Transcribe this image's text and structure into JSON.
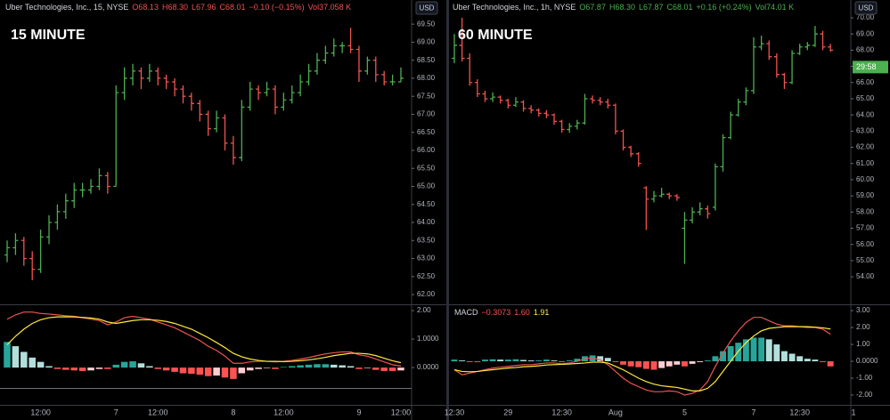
{
  "chart_data": [
    {
      "type": "ohlc",
      "title": "Uber Technologies, Inc., 15, NYSE",
      "legend_values": [
        "O68.13",
        "H68.30",
        "L67.96",
        "C68.01",
        "−0.10 (−0.15%)",
        "Vol37.058 K"
      ],
      "legend_color": "#ef5350",
      "annotation": "15 MINUTE",
      "currency": "USD",
      "up_color": "#4caf50",
      "down_color": "#ef5350",
      "ylim": [
        61.73,
        70.17
      ],
      "yticks": [
        {
          "value": 62,
          "label": "62.00"
        },
        {
          "value": 62.5,
          "label": "62.50"
        },
        {
          "value": 63,
          "label": "63.00"
        },
        {
          "value": 63.5,
          "label": "63.50"
        },
        {
          "value": 64,
          "label": "64.00"
        },
        {
          "value": 64.5,
          "label": "64.50"
        },
        {
          "value": 65,
          "label": "65.00"
        },
        {
          "value": 65.5,
          "label": "65.50"
        },
        {
          "value": 66,
          "label": "66.00"
        },
        {
          "value": 66.5,
          "label": "66.50"
        },
        {
          "value": 67,
          "label": "67.00"
        },
        {
          "value": 67.5,
          "label": "67.50"
        },
        {
          "value": 68,
          "label": "68.00"
        },
        {
          "value": 68.5,
          "label": "68.50"
        },
        {
          "value": 69,
          "label": "69.00"
        },
        {
          "value": 69.5,
          "label": "69.50"
        }
      ],
      "ohlc": [
        [
          63.1,
          63.5,
          62.9,
          63.3
        ],
        [
          63.3,
          63.7,
          63.1,
          63.5
        ],
        [
          63.5,
          63.6,
          62.8,
          63.0
        ],
        [
          63.0,
          63.2,
          62.4,
          62.7
        ],
        [
          62.7,
          63.8,
          62.6,
          63.6
        ],
        [
          63.6,
          64.2,
          63.4,
          64.0
        ],
        [
          64.0,
          64.5,
          63.8,
          64.3
        ],
        [
          64.3,
          64.8,
          64.1,
          64.6
        ],
        [
          64.6,
          65.1,
          64.4,
          64.9
        ],
        [
          64.9,
          65.1,
          64.7,
          64.9
        ],
        [
          64.9,
          65.2,
          64.8,
          65.0
        ],
        [
          65.0,
          65.5,
          64.9,
          65.3
        ],
        [
          65.3,
          65.4,
          64.8,
          65.0
        ],
        [
          65.0,
          67.8,
          65.0,
          67.6
        ],
        [
          67.6,
          68.3,
          67.4,
          68.0
        ],
        [
          68.0,
          68.4,
          67.8,
          68.2
        ],
        [
          68.2,
          68.3,
          67.7,
          68.0
        ],
        [
          68.0,
          68.4,
          67.9,
          68.2
        ],
        [
          68.2,
          68.3,
          67.8,
          68.0
        ],
        [
          68.0,
          68.1,
          67.7,
          67.9
        ],
        [
          67.9,
          68.0,
          67.5,
          67.7
        ],
        [
          67.7,
          67.8,
          67.3,
          67.5
        ],
        [
          67.5,
          67.6,
          67.1,
          67.3
        ],
        [
          67.3,
          67.4,
          66.8,
          67.0
        ],
        [
          67.0,
          67.1,
          66.4,
          66.6
        ],
        [
          66.6,
          67.1,
          66.5,
          66.9
        ],
        [
          66.9,
          67.0,
          66.0,
          66.2
        ],
        [
          66.2,
          66.4,
          65.6,
          65.8
        ],
        [
          65.8,
          67.4,
          65.7,
          67.2
        ],
        [
          67.2,
          67.9,
          67.1,
          67.7
        ],
        [
          67.7,
          67.8,
          67.4,
          67.6
        ],
        [
          67.6,
          67.9,
          67.5,
          67.7
        ],
        [
          67.7,
          67.8,
          67.0,
          67.2
        ],
        [
          67.2,
          67.6,
          67.1,
          67.4
        ],
        [
          67.4,
          67.8,
          67.3,
          67.6
        ],
        [
          67.6,
          68.1,
          67.5,
          67.9
        ],
        [
          67.9,
          68.4,
          67.8,
          68.2
        ],
        [
          68.2,
          68.7,
          68.1,
          68.5
        ],
        [
          68.5,
          68.9,
          68.4,
          68.7
        ],
        [
          68.7,
          69.1,
          68.6,
          68.9
        ],
        [
          68.9,
          69.0,
          68.7,
          68.9
        ],
        [
          68.9,
          69.4,
          68.7,
          68.8
        ],
        [
          68.8,
          68.9,
          67.9,
          68.2
        ],
        [
          68.2,
          68.6,
          68.1,
          68.5
        ],
        [
          68.5,
          68.6,
          67.9,
          68.1
        ],
        [
          68.1,
          68.2,
          67.8,
          67.9
        ],
        [
          67.9,
          68.1,
          67.8,
          67.9
        ],
        [
          67.9,
          68.3,
          67.9,
          68.0
        ]
      ]
    },
    {
      "type": "macd",
      "ylim": [
        -1.31,
        2.19
      ],
      "yticks": [
        {
          "value": 0,
          "label": "0.0000"
        },
        {
          "value": 1,
          "label": "1.0000"
        },
        {
          "value": 2,
          "label": "2.00"
        }
      ],
      "categories": [
        null,
        null,
        null,
        null,
        "12:00",
        null,
        null,
        null,
        null,
        null,
        null,
        null,
        null,
        "7",
        null,
        null,
        null,
        null,
        "12:00",
        null,
        null,
        null,
        null,
        null,
        null,
        null,
        null,
        "8",
        null,
        null,
        null,
        null,
        null,
        "12:00",
        null,
        null,
        null,
        null,
        null,
        null,
        null,
        null,
        "9",
        null,
        null,
        null,
        null,
        "12:00"
      ],
      "histogram_colors": [
        "#26a69a",
        "#b2dfdb",
        "#ff5252",
        "#ffcdd2"
      ],
      "histogram": [
        0.9,
        0.75,
        0.55,
        0.35,
        0.2,
        0.05,
        -0.05,
        -0.08,
        -0.1,
        -0.12,
        -0.1,
        -0.05,
        -0.05,
        0.1,
        0.2,
        0.22,
        0.15,
        0.05,
        -0.05,
        -0.1,
        -0.15,
        -0.2,
        -0.22,
        -0.25,
        -0.3,
        -0.28,
        -0.35,
        -0.4,
        -0.2,
        -0.1,
        -0.05,
        -0.02,
        -0.05,
        0.02,
        0.05,
        0.08,
        0.1,
        0.12,
        0.12,
        0.1,
        0.08,
        0.05,
        -0.05,
        -0.02,
        -0.08,
        -0.12,
        -0.12,
        -0.1
      ],
      "lines": [
        {
          "color": "#ef5350",
          "values": [
            1.7,
            1.85,
            1.95,
            1.95,
            1.9,
            1.88,
            1.85,
            1.82,
            1.8,
            1.75,
            1.7,
            1.65,
            1.5,
            1.6,
            1.75,
            1.8,
            1.75,
            1.7,
            1.6,
            1.5,
            1.4,
            1.25,
            1.1,
            0.95,
            0.75,
            0.6,
            0.4,
            0.15,
            0.15,
            0.2,
            0.22,
            0.22,
            0.2,
            0.22,
            0.25,
            0.3,
            0.35,
            0.42,
            0.48,
            0.52,
            0.55,
            0.55,
            0.45,
            0.4,
            0.3,
            0.2,
            0.1,
            0.05
          ]
        },
        {
          "color": "#ffeb3b",
          "values": [
            0.8,
            1.1,
            1.35,
            1.55,
            1.68,
            1.75,
            1.78,
            1.78,
            1.78,
            1.76,
            1.74,
            1.7,
            1.6,
            1.55,
            1.6,
            1.65,
            1.68,
            1.68,
            1.66,
            1.62,
            1.55,
            1.45,
            1.35,
            1.2,
            1.05,
            0.88,
            0.7,
            0.5,
            0.38,
            0.3,
            0.25,
            0.22,
            0.22,
            0.21,
            0.22,
            0.24,
            0.27,
            0.31,
            0.36,
            0.42,
            0.46,
            0.5,
            0.5,
            0.48,
            0.42,
            0.33,
            0.24,
            0.17
          ]
        }
      ]
    },
    {
      "type": "ohlc",
      "title": "Uber Technologies, Inc., 1h, NYSE",
      "legend_values": [
        "O67.87",
        "H68.30",
        "L67.87",
        "C68.01",
        "+0.16 (+0.24%)",
        "Vol74.01 K"
      ],
      "legend_color": "#4caf50",
      "annotation": "60 MINUTE",
      "currency": "USD",
      "countdown": "29:58",
      "up_color": "#4caf50",
      "down_color": "#ef5350",
      "ylim": [
        52.3,
        71.1
      ],
      "yticks": [
        {
          "value": 54,
          "label": "54.00"
        },
        {
          "value": 55,
          "label": "55.00"
        },
        {
          "value": 56,
          "label": "56.00"
        },
        {
          "value": 57,
          "label": "57.00"
        },
        {
          "value": 58,
          "label": "58.00"
        },
        {
          "value": 59,
          "label": "59.00"
        },
        {
          "value": 60,
          "label": "60.00"
        },
        {
          "value": 61,
          "label": "61.00"
        },
        {
          "value": 62,
          "label": "62.00"
        },
        {
          "value": 63,
          "label": "63.00"
        },
        {
          "value": 64,
          "label": "64.00"
        },
        {
          "value": 65,
          "label": "65.00"
        },
        {
          "value": 66,
          "label": "66.00"
        },
        {
          "value": 67,
          "label": "67.00"
        },
        {
          "value": 68,
          "label": "68.00"
        },
        {
          "value": 69,
          "label": "69.00"
        },
        {
          "value": 70,
          "label": "70.00"
        }
      ],
      "ohlc": [
        [
          67.5,
          69.0,
          67.2,
          68.3
        ],
        [
          68.3,
          70.0,
          67.3,
          67.5
        ],
        [
          67.5,
          67.8,
          65.8,
          66.0
        ],
        [
          66.0,
          66.2,
          65.1,
          65.3
        ],
        [
          65.3,
          65.5,
          64.8,
          65.0
        ],
        [
          65.0,
          65.4,
          64.8,
          65.1
        ],
        [
          65.1,
          65.2,
          64.7,
          64.9
        ],
        [
          64.9,
          65.0,
          64.4,
          64.6
        ],
        [
          64.6,
          65.1,
          64.5,
          64.8
        ],
        [
          64.8,
          64.9,
          64.2,
          64.4
        ],
        [
          64.4,
          64.6,
          64.1,
          64.3
        ],
        [
          64.3,
          64.4,
          63.9,
          64.1
        ],
        [
          64.1,
          64.3,
          63.8,
          64.0
        ],
        [
          64.0,
          64.1,
          63.4,
          63.6
        ],
        [
          63.6,
          63.7,
          62.9,
          63.1
        ],
        [
          63.1,
          63.5,
          62.9,
          63.3
        ],
        [
          63.3,
          63.7,
          63.1,
          63.5
        ],
        [
          63.5,
          65.3,
          63.4,
          65.0
        ],
        [
          65.0,
          65.2,
          64.7,
          64.9
        ],
        [
          64.9,
          65.1,
          64.6,
          64.8
        ],
        [
          64.8,
          65.0,
          64.4,
          64.6
        ],
        [
          64.6,
          64.7,
          62.8,
          63.0
        ],
        [
          63.0,
          63.1,
          61.8,
          62.0
        ],
        [
          62.0,
          62.1,
          61.4,
          61.6
        ],
        [
          61.6,
          61.7,
          60.8,
          61.0
        ],
        [
          59.5,
          59.6,
          56.9,
          58.8
        ],
        [
          58.8,
          59.3,
          58.6,
          59.0
        ],
        [
          59.0,
          59.5,
          58.9,
          59.1
        ],
        [
          59.1,
          59.2,
          58.8,
          59.0
        ],
        [
          59.0,
          59.1,
          58.7,
          58.9
        ],
        [
          57.0,
          58.0,
          54.8,
          57.5
        ],
        [
          57.5,
          58.3,
          57.3,
          58.0
        ],
        [
          58.0,
          58.6,
          57.8,
          58.2
        ],
        [
          58.2,
          58.4,
          57.6,
          57.9
        ],
        [
          58.3,
          61.0,
          58.1,
          60.8
        ],
        [
          60.8,
          62.8,
          60.5,
          62.6
        ],
        [
          62.6,
          64.2,
          62.5,
          64.0
        ],
        [
          64.0,
          65.0,
          63.9,
          64.8
        ],
        [
          64.8,
          65.7,
          64.6,
          65.5
        ],
        [
          65.5,
          68.8,
          65.3,
          68.2
        ],
        [
          68.2,
          68.9,
          68.0,
          68.4
        ],
        [
          68.4,
          68.6,
          67.4,
          67.6
        ],
        [
          67.6,
          67.8,
          66.3,
          66.5
        ],
        [
          66.5,
          66.6,
          65.6,
          66.0
        ],
        [
          66.0,
          68.0,
          65.9,
          67.8
        ],
        [
          67.8,
          68.4,
          67.7,
          68.2
        ],
        [
          68.2,
          68.5,
          68.0,
          68.3
        ],
        [
          68.3,
          69.5,
          68.2,
          69.0
        ],
        [
          69.0,
          69.2,
          68.0,
          68.2
        ],
        [
          68.2,
          68.4,
          67.9,
          68.0
        ]
      ]
    },
    {
      "type": "macd",
      "ylim": [
        -2.58,
        3.32
      ],
      "legend_title": "MACD",
      "legend_values": [
        "−0.3073",
        "1.60",
        "1.91"
      ],
      "yticks": [
        {
          "value": -2,
          "label": "-2.00"
        },
        {
          "value": -1,
          "label": "-1.00"
        },
        {
          "value": 0,
          "label": "0.0000"
        },
        {
          "value": 1,
          "label": "1.00"
        },
        {
          "value": 2,
          "label": "2.00"
        },
        {
          "value": 3,
          "label": "3.00"
        }
      ],
      "categories": [
        "12:30",
        null,
        null,
        null,
        null,
        null,
        null,
        "29",
        null,
        null,
        null,
        null,
        null,
        null,
        "12:30",
        null,
        null,
        null,
        null,
        null,
        null,
        "Aug",
        null,
        null,
        null,
        null,
        null,
        null,
        null,
        null,
        "5",
        null,
        null,
        null,
        null,
        null,
        null,
        null,
        null,
        "7",
        null,
        null,
        null,
        null,
        null,
        "12:30",
        null,
        null,
        null,
        null,
        null,
        null,
        "1"
      ],
      "histogram_colors": [
        "#26a69a",
        "#b2dfdb",
        "#ff5252",
        "#ffcdd2"
      ],
      "histogram": [
        0.1,
        0.05,
        -0.05,
        -0.05,
        0.1,
        0.12,
        0.1,
        0.1,
        0.12,
        0.08,
        0.05,
        0.05,
        0.1,
        0.05,
        -0.05,
        0.05,
        0.15,
        0.3,
        0.35,
        0.3,
        0.2,
        -0.05,
        -0.2,
        -0.3,
        -0.35,
        -0.45,
        -0.5,
        -0.4,
        -0.3,
        -0.2,
        -0.3,
        -0.15,
        -0.05,
        0.05,
        0.3,
        0.6,
        0.9,
        1.1,
        1.3,
        1.4,
        1.4,
        1.3,
        1.0,
        0.6,
        0.45,
        0.3,
        0.15,
        0.1,
        -0.05,
        -0.3,
        null,
        null,
        null
      ],
      "lines": [
        {
          "color": "#ef5350",
          "values": [
            -0.5,
            -0.8,
            -0.7,
            -0.6,
            -0.5,
            -0.4,
            -0.35,
            -0.3,
            -0.25,
            -0.2,
            -0.2,
            -0.15,
            -0.1,
            -0.1,
            -0.15,
            -0.1,
            0.0,
            0.15,
            0.2,
            0.1,
            -0.2,
            -0.6,
            -1.0,
            -1.3,
            -1.5,
            -1.7,
            -1.8,
            -1.8,
            -1.75,
            -1.8,
            -2.0,
            -1.9,
            -1.7,
            -1.2,
            -0.3,
            0.5,
            1.2,
            1.8,
            2.3,
            2.6,
            2.6,
            2.4,
            2.2,
            2.1,
            2.1,
            2.05,
            2.0,
            2.0,
            1.9,
            1.6,
            null,
            null,
            null
          ]
        },
        {
          "color": "#ffeb3b",
          "values": [
            -0.5,
            -0.6,
            -0.62,
            -0.6,
            -0.55,
            -0.5,
            -0.45,
            -0.4,
            -0.37,
            -0.32,
            -0.3,
            -0.27,
            -0.22,
            -0.2,
            -0.18,
            -0.16,
            -0.13,
            -0.1,
            -0.05,
            -0.05,
            -0.1,
            -0.3,
            -0.5,
            -0.75,
            -1.0,
            -1.2,
            -1.35,
            -1.45,
            -1.5,
            -1.55,
            -1.65,
            -1.75,
            -1.75,
            -1.6,
            -1.2,
            -0.6,
            0.0,
            0.6,
            1.1,
            1.5,
            1.8,
            1.95,
            2.0,
            2.05,
            2.05,
            2.05,
            2.05,
            2.02,
            1.98,
            1.91,
            null,
            null,
            null
          ]
        }
      ]
    }
  ]
}
